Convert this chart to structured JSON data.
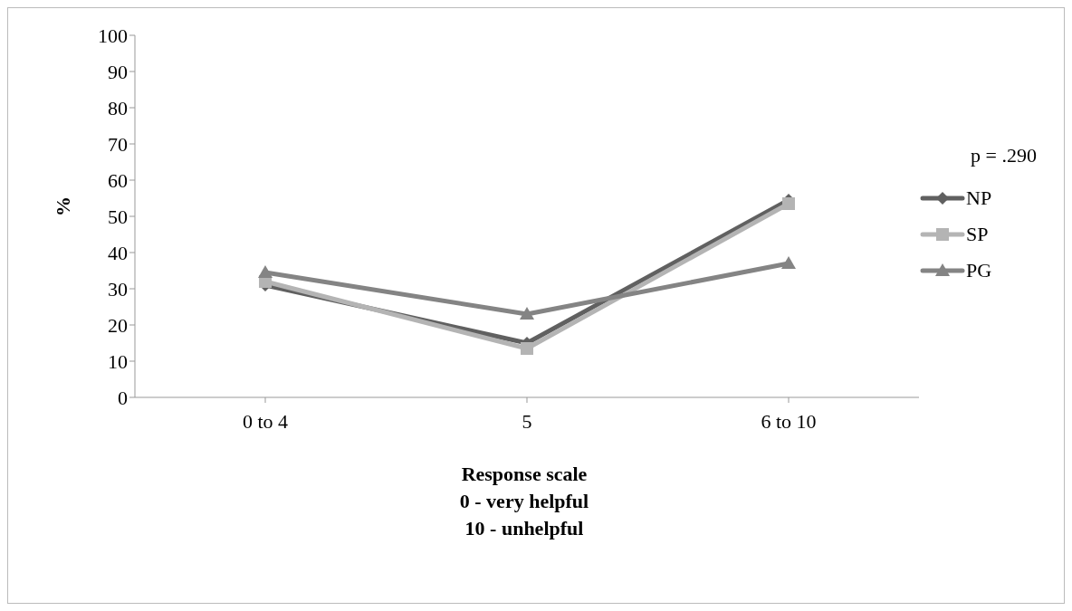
{
  "chart_data": {
    "type": "line",
    "xlabel": "Response scale\n0 - very helpful\n10 - unhelpful",
    "ylabel": "%",
    "annotations": [
      "p = .290"
    ],
    "categories": [
      "0 to 4",
      "5",
      "6 to 10"
    ],
    "series": [
      {
        "name": "NP",
        "color": "#606060",
        "values": [
          31,
          15,
          54.5
        ],
        "marker": "diamond"
      },
      {
        "name": "SP",
        "color": "#b4b4b4",
        "values": [
          32,
          13.5,
          53.5
        ],
        "marker": "square"
      },
      {
        "name": "PG",
        "color": "#848484",
        "values": [
          34.5,
          23,
          37
        ],
        "marker": "triangle"
      }
    ],
    "ylim": [
      0,
      100
    ],
    "yticks": [
      0,
      10,
      20,
      30,
      40,
      50,
      60,
      70,
      80,
      90,
      100
    ],
    "grid": false,
    "legend": "right",
    "line_style": "solid"
  }
}
